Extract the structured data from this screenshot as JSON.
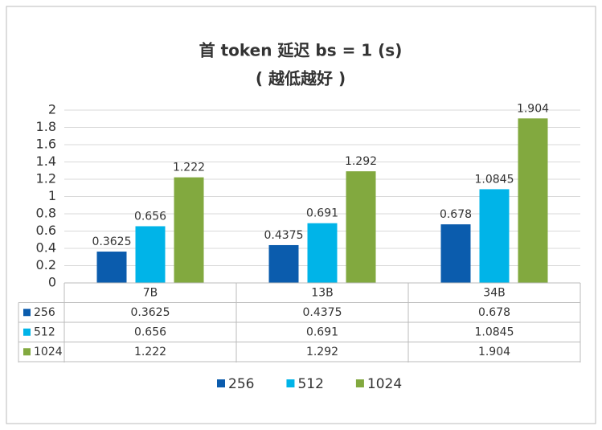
{
  "chart_data": {
    "type": "bar",
    "title": "首 token 延迟 bs = 1 (s)",
    "subtitle": "( 越低越好 )",
    "categories": [
      "7B",
      "13B",
      "34B"
    ],
    "series": [
      {
        "name": "256",
        "color": "#0b5cad",
        "values": [
          0.3625,
          0.4375,
          0.678
        ]
      },
      {
        "name": "512",
        "color": "#00b4e8",
        "values": [
          0.656,
          0.691,
          1.0845
        ]
      },
      {
        "name": "1024",
        "color": "#82a93f",
        "values": [
          1.222,
          1.292,
          1.904
        ]
      }
    ],
    "ylim": [
      0,
      2
    ],
    "yticks": [
      0,
      0.2,
      0.4,
      0.6,
      0.8,
      1,
      1.2,
      1.4,
      1.6,
      1.8,
      2
    ],
    "grid": true,
    "data_table": true,
    "legend": "bottom"
  }
}
